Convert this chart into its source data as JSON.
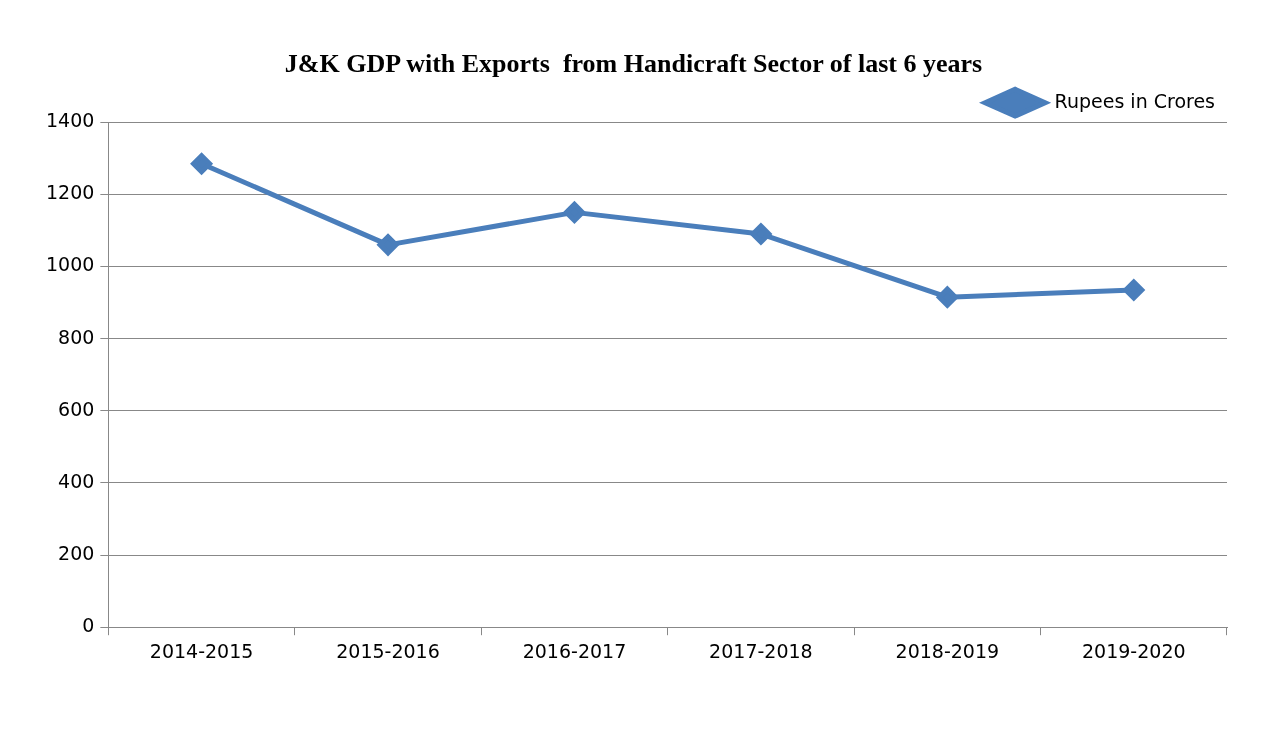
{
  "chart_data": {
    "type": "line",
    "title": "J&K GDP with Exports  from Handicraft Sector of last 6 years",
    "categories": [
      "2014-2015",
      "2015-2016",
      "2016-2017",
      "2017-2018",
      "2018-2019",
      "2019-2020"
    ],
    "series": [
      {
        "name": "Rupees in Crores",
        "color": "#4a7ebb",
        "values": [
          1285,
          1060,
          1150,
          1090,
          915,
          935
        ]
      }
    ],
    "ylim": [
      0,
      1400
    ],
    "yticks": [
      0,
      200,
      400,
      600,
      800,
      1000,
      1200,
      1400
    ],
    "grid": "y",
    "legend": "top right",
    "marker": "diamond",
    "line_style": "solid"
  }
}
